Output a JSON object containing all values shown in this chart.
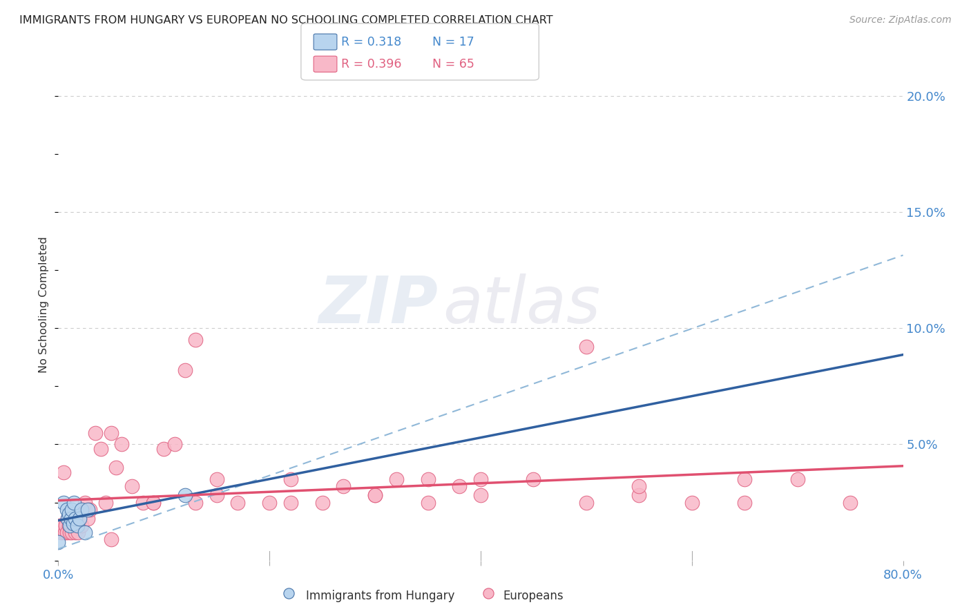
{
  "title": "IMMIGRANTS FROM HUNGARY VS EUROPEAN NO SCHOOLING COMPLETED CORRELATION CHART",
  "source": "Source: ZipAtlas.com",
  "ylabel": "No Schooling Completed",
  "xlim": [
    0.0,
    0.8
  ],
  "ylim": [
    0.0,
    0.22
  ],
  "hungary_face_color": "#b8d4ee",
  "hungary_edge_color": "#4472a8",
  "european_face_color": "#f8b8c8",
  "european_edge_color": "#e06080",
  "hungary_line_color": "#3060a0",
  "european_line_color": "#e05070",
  "dashed_line_color": "#90b8d8",
  "legend_r_hungary": "R = 0.318",
  "legend_n_hungary": "N = 17",
  "legend_r_european": "R = 0.396",
  "legend_n_european": "N = 65",
  "watermark_zip": "ZIP",
  "watermark_atlas": "atlas",
  "tick_color": "#4488cc",
  "background_color": "#ffffff",
  "grid_color": "#cccccc",
  "hungary_points_x": [
    0.005,
    0.008,
    0.009,
    0.01,
    0.011,
    0.012,
    0.013,
    0.014,
    0.015,
    0.016,
    0.018,
    0.02,
    0.022,
    0.025,
    0.028,
    0.12,
    0.0
  ],
  "hungary_points_y": [
    0.025,
    0.022,
    0.018,
    0.02,
    0.015,
    0.018,
    0.022,
    0.016,
    0.025,
    0.018,
    0.015,
    0.018,
    0.022,
    0.012,
    0.022,
    0.028,
    0.008
  ],
  "european_points_x": [
    0.002,
    0.003,
    0.004,
    0.005,
    0.006,
    0.007,
    0.008,
    0.009,
    0.01,
    0.011,
    0.012,
    0.013,
    0.014,
    0.015,
    0.016,
    0.017,
    0.018,
    0.019,
    0.02,
    0.022,
    0.025,
    0.028,
    0.03,
    0.035,
    0.04,
    0.045,
    0.05,
    0.055,
    0.06,
    0.07,
    0.08,
    0.09,
    0.1,
    0.11,
    0.12,
    0.13,
    0.15,
    0.17,
    0.2,
    0.22,
    0.25,
    0.27,
    0.3,
    0.32,
    0.35,
    0.38,
    0.4,
    0.45,
    0.5,
    0.55,
    0.6,
    0.65,
    0.7,
    0.75,
    0.35,
    0.5,
    0.4,
    0.13,
    0.05,
    0.09,
    0.15,
    0.22,
    0.3,
    0.55,
    0.65
  ],
  "european_points_y": [
    0.015,
    0.012,
    0.015,
    0.038,
    0.012,
    0.015,
    0.012,
    0.018,
    0.015,
    0.012,
    0.015,
    0.012,
    0.018,
    0.015,
    0.012,
    0.018,
    0.015,
    0.012,
    0.018,
    0.015,
    0.025,
    0.018,
    0.022,
    0.055,
    0.048,
    0.025,
    0.055,
    0.04,
    0.05,
    0.032,
    0.025,
    0.025,
    0.048,
    0.05,
    0.082,
    0.095,
    0.028,
    0.025,
    0.025,
    0.025,
    0.025,
    0.032,
    0.028,
    0.035,
    0.025,
    0.032,
    0.028,
    0.035,
    0.025,
    0.028,
    0.025,
    0.035,
    0.035,
    0.025,
    0.035,
    0.092,
    0.035,
    0.025,
    0.009,
    0.025,
    0.035,
    0.035,
    0.028,
    0.032,
    0.025
  ]
}
